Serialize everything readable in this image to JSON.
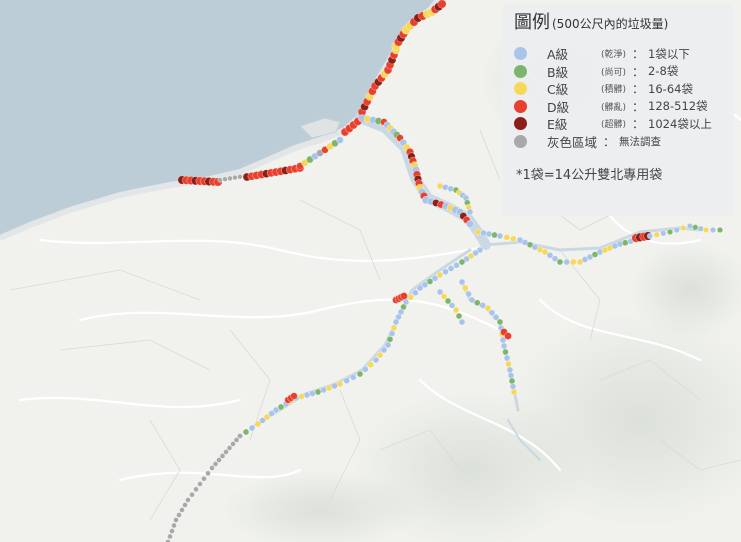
{
  "legend": {
    "title": "圖例",
    "subtitle": "(500公尺內的垃圾量)",
    "items": [
      {
        "level": "A級",
        "note": "(乾淨)",
        "value": "1袋以下",
        "color": "#a9c4ea"
      },
      {
        "level": "B級",
        "note": "(尚可)",
        "value": "2-8袋",
        "color": "#7db66a"
      },
      {
        "level": "C級",
        "note": "(積髒)",
        "value": "16-64袋",
        "color": "#f6d85a"
      },
      {
        "level": "D級",
        "note": "(髒亂)",
        "value": "128-512袋",
        "color": "#e8402e"
      },
      {
        "level": "E級",
        "note": "(超髒)",
        "value": "1024袋以上",
        "color": "#8c1f18"
      },
      {
        "level": "灰色區域",
        "note": "",
        "value": "無法調查",
        "color": "#a8a8a8"
      }
    ],
    "footnote": "*1袋=14公升雙北專用袋"
  },
  "colors": {
    "sea": "#bccdd8",
    "land": "#f1f2ee",
    "coast": "#dfe3e4",
    "road": "#ffffff"
  }
}
